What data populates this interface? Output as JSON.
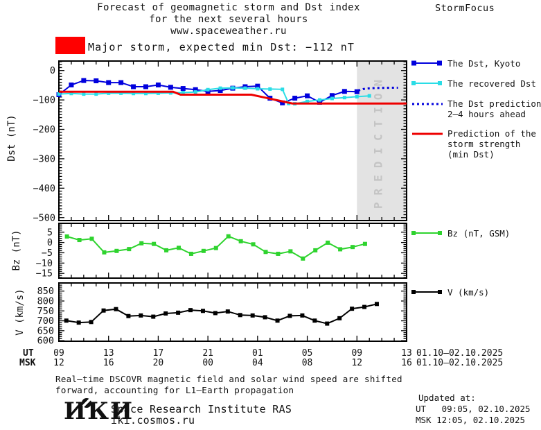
{
  "header": {
    "title_line1": "Forecast of geomagnetic storm and Dst index",
    "title_line2": "for the next several hours",
    "title_line3": "www.spaceweather.ru",
    "brand": "StormFocus",
    "warning_text": "Major storm, expected min Dst: −112 nT",
    "warning_color": "#ff0000"
  },
  "chart_data": [
    {
      "id": "dst",
      "type": "line",
      "ylabel": "Dst (nT)",
      "ylim": [
        -510,
        32
      ],
      "xlim_hours": [
        0,
        28
      ],
      "grid": false,
      "ytick_values": [
        0,
        -100,
        -200,
        -300,
        -400,
        -500
      ],
      "ytick_labels": [
        "0",
        "−100",
        "−200",
        "−300",
        "−400",
        "−500"
      ],
      "prediction_band": {
        "from_hour": 24,
        "to_hour": 28,
        "label": "PREDICTION",
        "color": "#e3e3e3",
        "text_color": "#c4c4c4"
      },
      "series": [
        {
          "slug": "dst-kyoto",
          "name": "The Dst, Kyoto",
          "color": "#0000dd",
          "style": "solid",
          "marker": "square",
          "marker_size": 7,
          "line_width": 2,
          "x": [
            0,
            1,
            2,
            3,
            4,
            5,
            6,
            7,
            8,
            9,
            10,
            11,
            12,
            13,
            14,
            15,
            16,
            17,
            18,
            19,
            20,
            21,
            22,
            23,
            24
          ],
          "values": [
            -82,
            -49,
            -34,
            -35,
            -41,
            -41,
            -55,
            -55,
            -49,
            -57,
            -61,
            -65,
            -71,
            -68,
            -60,
            -55,
            -53,
            -94,
            -110,
            -94,
            -86,
            -108,
            -85,
            -71,
            -72
          ]
        },
        {
          "slug": "recovered-dst",
          "name": "The recovered Dst",
          "color": "#2adde6",
          "style": "solid",
          "marker": "square",
          "marker_size": 5,
          "line_width": 2,
          "x": [
            0,
            1,
            2,
            3,
            4,
            5,
            6,
            7,
            8,
            9,
            10,
            11,
            12,
            13,
            14,
            15,
            16,
            17,
            18,
            18.5,
            19,
            20,
            21,
            22,
            23,
            24,
            25
          ],
          "values": [
            -80,
            -78,
            -80,
            -80,
            -77,
            -77,
            -78,
            -78,
            -77,
            -76,
            -75,
            -73,
            -65,
            -60,
            -59,
            -60,
            -62,
            -63,
            -64,
            -112,
            -113,
            -105,
            -100,
            -95,
            -92,
            -89,
            -86
          ]
        },
        {
          "slug": "dst-prediction",
          "name": "The Dst prediction 2–4 hours ahead",
          "color": "#0000dd",
          "style": "dotted",
          "marker": "none",
          "marker_size": 0,
          "line_width": 3,
          "x": [
            24.1,
            24.5,
            25,
            25.5,
            26.2,
            27,
            27.3
          ],
          "values": [
            -68,
            -63,
            -60.5,
            -59.5,
            -59,
            -58.5,
            -58.5
          ]
        },
        {
          "slug": "storm-strength",
          "name": "Prediction of the storm strength (min Dst)",
          "color": "#ee0000",
          "style": "solid",
          "marker": "none",
          "marker_size": 0,
          "line_width": 3,
          "x": [
            0,
            9.2,
            9.8,
            15.5,
            18.8,
            28
          ],
          "values": [
            -72,
            -72,
            -82,
            -82,
            -112,
            -112
          ]
        }
      ]
    },
    {
      "id": "bz",
      "type": "line",
      "ylabel": "Bz (nT)",
      "ylim": [
        -17.3,
        9.3
      ],
      "xlim_hours": [
        0,
        28
      ],
      "grid": false,
      "ytick_values": [
        5,
        0,
        -5,
        -10,
        -15
      ],
      "ytick_labels": [
        "5",
        "0",
        "−5",
        "−10",
        "−15"
      ],
      "series": [
        {
          "slug": "bz",
          "name": "Bz (nT, GSM)",
          "color": "#2ed32e",
          "style": "solid",
          "marker": "square",
          "marker_size": 6,
          "line_width": 2,
          "x": [
            0.65,
            1.65,
            2.65,
            3.65,
            4.65,
            5.65,
            6.65,
            7.65,
            8.65,
            9.65,
            10.65,
            11.65,
            12.65,
            13.65,
            14.65,
            15.65,
            16.65,
            17.65,
            18.65,
            19.65,
            20.65,
            21.65,
            22.65,
            23.65,
            24.65
          ],
          "values": [
            2.9,
            1.2,
            1.8,
            -4.8,
            -4.1,
            -3.2,
            -0.4,
            -0.7,
            -3.8,
            -2.6,
            -5.5,
            -4.1,
            -2.7,
            3.0,
            0.6,
            -0.9,
            -4.6,
            -5.5,
            -4.3,
            -7.8,
            -3.8,
            -0.1,
            -3.3,
            -2.2,
            -0.7
          ]
        }
      ]
    },
    {
      "id": "v",
      "type": "line",
      "ylabel": "V (km/s)",
      "ylim": [
        597,
        891
      ],
      "xlim_hours": [
        0,
        28
      ],
      "grid": false,
      "ytick_values": [
        850,
        800,
        750,
        700,
        650,
        600
      ],
      "ytick_labels": [
        "850",
        "800",
        "750",
        "700",
        "650",
        "600"
      ],
      "series": [
        {
          "slug": "v",
          "name": "V (km/s)",
          "color": "#000000",
          "style": "solid",
          "marker": "square",
          "marker_size": 6,
          "line_width": 2,
          "x": [
            0.6,
            1.6,
            2.6,
            3.6,
            4.6,
            5.6,
            6.6,
            7.6,
            8.6,
            9.6,
            10.6,
            11.6,
            12.6,
            13.6,
            14.6,
            15.6,
            16.6,
            17.6,
            18.6,
            19.6,
            20.6,
            21.6,
            22.6,
            23.6,
            24.6,
            25.6
          ],
          "values": [
            701,
            691,
            694,
            752,
            759,
            724,
            727,
            721,
            737,
            741,
            754,
            750,
            739,
            747,
            729,
            727,
            718,
            701,
            725,
            727,
            701,
            686,
            713,
            761,
            770,
            785
          ]
        }
      ]
    }
  ],
  "legend_dst": [
    {
      "swatch": "blue-line-squares",
      "color": "#0000dd",
      "lines": [
        "The Dst, Kyoto"
      ]
    },
    {
      "swatch": "cyan-line-squares",
      "color": "#2adde6",
      "lines": [
        "The recovered Dst"
      ]
    },
    {
      "swatch": "blue-dotted-line",
      "color": "#0000dd",
      "lines": [
        "The Dst prediction",
        "2–4 hours ahead"
      ]
    },
    {
      "swatch": "red-line",
      "color": "#ee0000",
      "lines": [
        "Prediction of the",
        "storm strength",
        "(min Dst)"
      ]
    }
  ],
  "legend_bz": {
    "color": "#2ed32e",
    "label": "Bz (nT, GSM)"
  },
  "legend_v": {
    "color": "#000000",
    "label": "V (km/s)"
  },
  "time_axis": {
    "ut_label": "UT",
    "msk_label": "MSK",
    "tick_hours": [
      0,
      4,
      8,
      12,
      16,
      20,
      24,
      28
    ],
    "ut_hours": [
      "09",
      "13",
      "17",
      "21",
      "01",
      "05",
      "09",
      "13"
    ],
    "msk_hours": [
      "12",
      "16",
      "20",
      "00",
      "04",
      "08",
      "12",
      "16"
    ],
    "ut_date": "01.10–02.10.2025",
    "msk_date": "01.10–02.10.2025"
  },
  "footer": {
    "note_line1": "Real–time DSCOVR magnetic field and solar wind speed are shifted",
    "note_line2": "forward, accounting for L1–Earth propagation",
    "logo": "ИКИ",
    "institute": "Space Research Institute RAS",
    "site": "iki.cosmos.ru",
    "updated_label": "Updated at:",
    "updated_ut": "UT   09:05, 02.10.2025",
    "updated_msk": "MSK 12:05, 02.10.2025"
  }
}
